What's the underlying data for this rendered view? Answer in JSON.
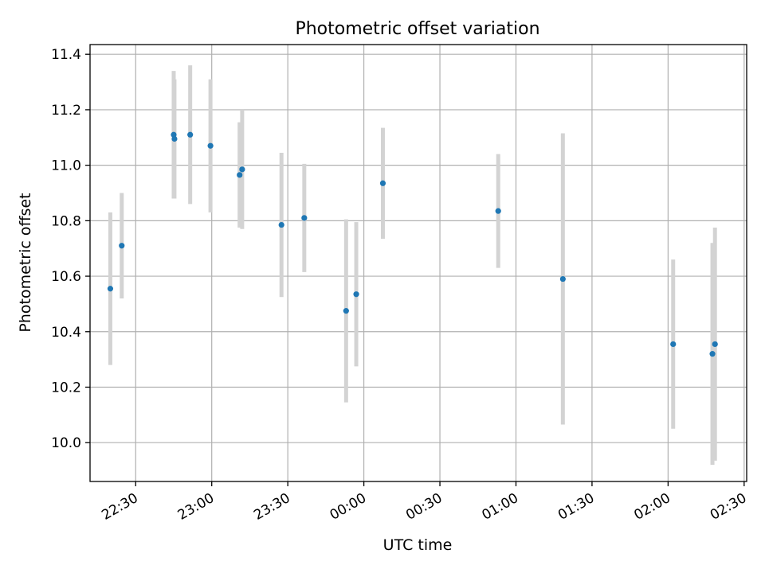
{
  "chart_data": {
    "type": "scatter",
    "title": "Photometric offset variation",
    "xlabel": "UTC time",
    "ylabel": "Photometric offset",
    "xlim": [
      "22:12",
      "02:31"
    ],
    "ylim": [
      9.86,
      11.435
    ],
    "x_ticks": [
      "22:30",
      "23:00",
      "23:30",
      "00:00",
      "00:30",
      "01:00",
      "01:30",
      "02:00",
      "02:30"
    ],
    "y_ticks": [
      10.0,
      10.2,
      10.4,
      10.6,
      10.8,
      11.0,
      11.2,
      11.4
    ],
    "grid": true,
    "series": [
      {
        "marker_color": "#1f77b4",
        "errorbar_color": "#d3d3d3",
        "points": [
          {
            "x": "22:20",
            "y": 10.555,
            "err": 0.275
          },
          {
            "x": "22:24.5",
            "y": 10.71,
            "err": 0.19
          },
          {
            "x": "22:45",
            "y": 11.11,
            "err": 0.23
          },
          {
            "x": "22:45.3",
            "y": 11.095,
            "err": 0.215
          },
          {
            "x": "22:51.5",
            "y": 11.11,
            "err": 0.25
          },
          {
            "x": "22:59.5",
            "y": 11.07,
            "err": 0.24
          },
          {
            "x": "23:11",
            "y": 10.965,
            "err": 0.19
          },
          {
            "x": "23:12",
            "y": 10.985,
            "err": 0.215
          },
          {
            "x": "23:27.5",
            "y": 10.785,
            "err": 0.26
          },
          {
            "x": "23:36.5",
            "y": 10.81,
            "err": 0.195
          },
          {
            "x": "23:53",
            "y": 10.475,
            "err": 0.33
          },
          {
            "x": "23:57",
            "y": 10.535,
            "err": 0.26
          },
          {
            "x": "00:07.5",
            "y": 10.935,
            "err": 0.2
          },
          {
            "x": "00:53",
            "y": 10.835,
            "err": 0.205
          },
          {
            "x": "01:18.5",
            "y": 10.59,
            "err": 0.525
          },
          {
            "x": "02:02",
            "y": 10.355,
            "err": 0.305
          },
          {
            "x": "02:17.5",
            "y": 10.32,
            "err": 0.4
          },
          {
            "x": "02:18.5",
            "y": 10.355,
            "err": 0.42
          }
        ]
      }
    ]
  }
}
